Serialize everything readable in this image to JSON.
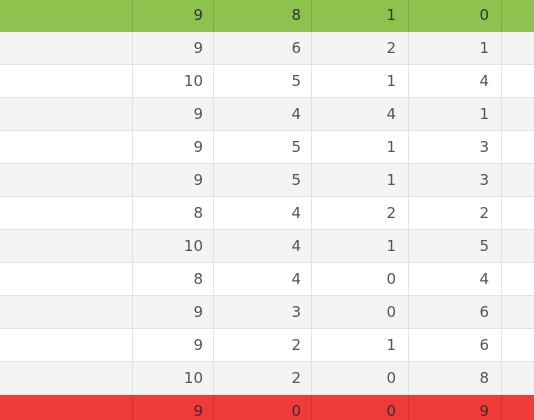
{
  "table": {
    "rows": [
      {
        "team": "",
        "played": "9",
        "won": "8",
        "draw": "1",
        "lost": "0",
        "status": "top"
      },
      {
        "team": "",
        "played": "9",
        "won": "6",
        "draw": "2",
        "lost": "1",
        "status": "normal"
      },
      {
        "team": "",
        "played": "10",
        "won": "5",
        "draw": "1",
        "lost": "4",
        "status": "normal"
      },
      {
        "team": "",
        "played": "9",
        "won": "4",
        "draw": "4",
        "lost": "1",
        "status": "normal"
      },
      {
        "team": "",
        "played": "9",
        "won": "5",
        "draw": "1",
        "lost": "3",
        "status": "normal"
      },
      {
        "team": "",
        "played": "9",
        "won": "5",
        "draw": "1",
        "lost": "3",
        "status": "normal"
      },
      {
        "team": "",
        "played": "8",
        "won": "4",
        "draw": "2",
        "lost": "2",
        "status": "normal"
      },
      {
        "team": "",
        "played": "10",
        "won": "4",
        "draw": "1",
        "lost": "5",
        "status": "normal"
      },
      {
        "team": "",
        "played": "8",
        "won": "4",
        "draw": "0",
        "lost": "4",
        "status": "normal"
      },
      {
        "team": "",
        "played": "9",
        "won": "3",
        "draw": "0",
        "lost": "6",
        "status": "normal"
      },
      {
        "team": "",
        "played": "9",
        "won": "2",
        "draw": "1",
        "lost": "6",
        "status": "normal"
      },
      {
        "team": "",
        "played": "10",
        "won": "2",
        "draw": "0",
        "lost": "8",
        "status": "normal"
      },
      {
        "team": "",
        "played": "9",
        "won": "0",
        "draw": "0",
        "lost": "9",
        "status": "bottom"
      }
    ]
  },
  "colors": {
    "top_highlight": "#8dc24f",
    "bottom_highlight": "#ef3b38",
    "stripe": "#f4f4f4"
  }
}
